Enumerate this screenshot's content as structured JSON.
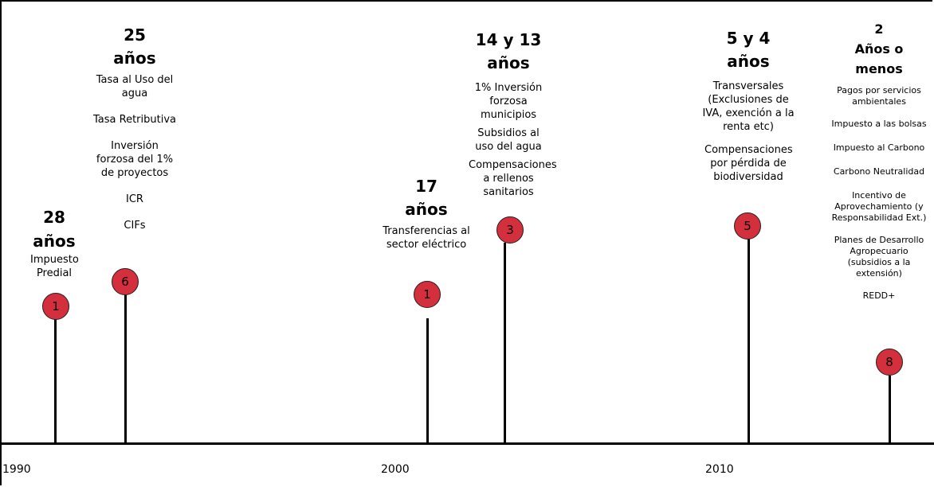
{
  "axis": {
    "years": [
      "1990",
      "2000",
      "2010"
    ]
  },
  "markers": [
    {
      "count": "1",
      "heading": "28 años",
      "items": [
        "Impuesto Predial"
      ]
    },
    {
      "count": "6",
      "heading": "25 años",
      "items": [
        "Tasa al Uso del agua",
        "Tasa Retributiva",
        "Inversión forzosa del 1% de proyectos",
        "ICR",
        "CIFs"
      ]
    },
    {
      "count": "1",
      "heading": "17 años",
      "items": [
        "Transferencias al sector eléctrico"
      ]
    },
    {
      "count": "3",
      "heading": "14 y 13 años",
      "items": [
        "1% Inversión forzosa municipios",
        "Subsidios al uso del agua",
        "Compensaciones a rellenos sanitarios"
      ]
    },
    {
      "count": "5",
      "heading": "5 y 4 años",
      "items": [
        "Transversales (Exclusiones de IVA, exención a la renta etc)",
        "Compensaciones por pérdida de biodiversidad"
      ]
    },
    {
      "count": "8",
      "heading": "2 Años o menos",
      "items": [
        "Pagos por servicios ambientales",
        "Impuesto a las bolsas",
        "Impuesto al Carbono",
        "Carbono Neutralidad",
        "Incentivo de Aprovechamiento (y Responsabilidad Ext.)",
        "Planes de Desarrollo Agropecuario (subsidios a la extensión)",
        "REDD+"
      ]
    }
  ],
  "colors": {
    "marker_fill": "#d32f3c",
    "line": "#000000"
  }
}
